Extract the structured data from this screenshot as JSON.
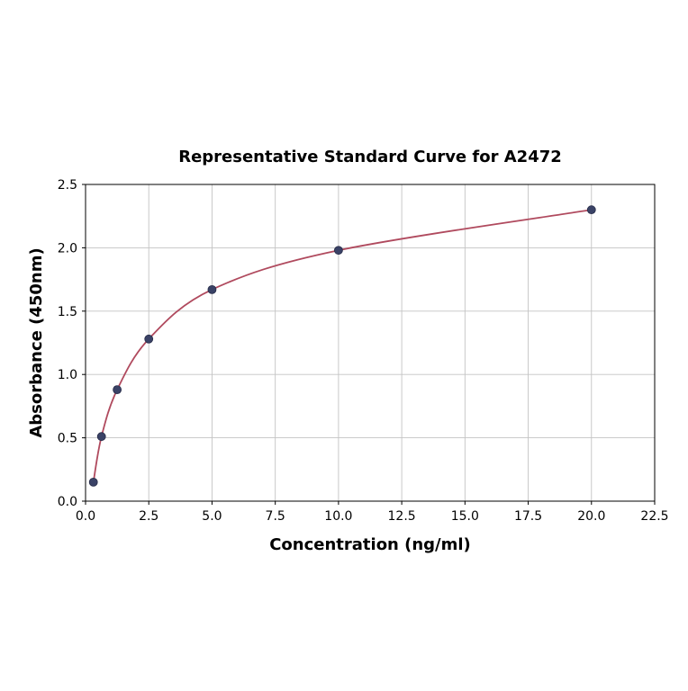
{
  "page": {
    "background": "#ffffff"
  },
  "chart_data": {
    "type": "scatter",
    "title": "Representative Standard Curve for A2472",
    "xlabel": "Concentration (ng/ml)",
    "ylabel": "Absorbance (450nm)",
    "xlim": [
      0,
      22.5
    ],
    "ylim": [
      0,
      2.5
    ],
    "x_ticks": [
      0,
      2.5,
      5,
      7.5,
      10,
      12.5,
      15,
      17.5,
      20,
      22.5
    ],
    "x_tick_labels": [
      "0.0",
      "2.5",
      "5.0",
      "7.5",
      "10.0",
      "12.5",
      "15.0",
      "17.5",
      "20.0",
      "22.5"
    ],
    "y_ticks": [
      0,
      0.5,
      1,
      1.5,
      2,
      2.5
    ],
    "y_tick_labels": [
      "0.0",
      "0.5",
      "1.0",
      "1.5",
      "2.0",
      "2.5"
    ],
    "grid": true,
    "legend": "none",
    "points": [
      {
        "x": 0.31,
        "y": 0.15
      },
      {
        "x": 0.63,
        "y": 0.51
      },
      {
        "x": 1.25,
        "y": 0.88
      },
      {
        "x": 2.5,
        "y": 1.28
      },
      {
        "x": 5.0,
        "y": 1.67
      },
      {
        "x": 10.0,
        "y": 1.98
      },
      {
        "x": 20.0,
        "y": 2.3
      }
    ],
    "colors": {
      "line": "#b04a5e",
      "marker_fill": "#3a4266",
      "marker_edge": "#262b47",
      "grid": "#c3c3c3",
      "axis": "#000000"
    }
  }
}
